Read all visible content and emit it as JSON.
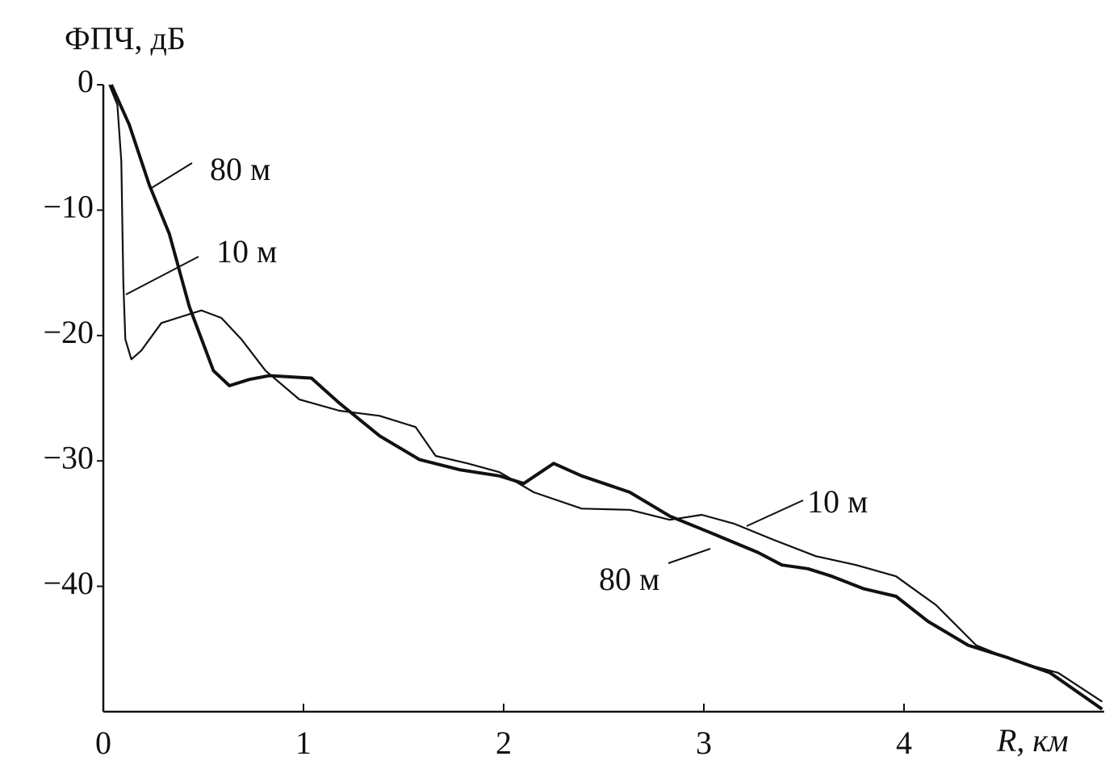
{
  "chart_data": {
    "type": "line",
    "y_label": "ФПЧ, дБ",
    "x_label": "R, км",
    "xlim": [
      0,
      5
    ],
    "xticks": [
      0,
      1,
      2,
      3,
      4
    ],
    "ylim": [
      -50,
      0
    ],
    "yticks": [
      0,
      {
        "value": -10,
        "label": "−10"
      },
      {
        "value": -20,
        "label": "−20"
      },
      {
        "value": -30,
        "label": "−30"
      },
      {
        "value": -40,
        "label": "−40"
      }
    ],
    "series": [
      {
        "name": "80 м",
        "color": "#111111",
        "x": [
          0.04,
          0.13,
          0.23,
          0.33,
          0.43,
          0.55,
          0.63,
          0.73,
          0.83,
          1.04,
          1.18,
          1.38,
          1.58,
          1.78,
          1.98,
          2.1,
          2.25,
          2.39,
          2.63,
          2.83,
          3.03,
          3.27,
          3.39,
          3.52,
          3.64,
          3.8,
          3.96,
          4.12,
          4.32,
          4.52,
          4.73,
          4.99
        ],
        "values": [
          0,
          -3.2,
          -8.0,
          -11.9,
          -17.7,
          -22.8,
          -24.0,
          -23.5,
          -23.2,
          -23.4,
          -25.4,
          -28.0,
          -29.9,
          -30.7,
          -31.2,
          -31.8,
          -30.2,
          -31.2,
          -32.5,
          -34.4,
          -35.7,
          -37.3,
          -38.3,
          -38.6,
          -39.2,
          -40.2,
          -40.8,
          -42.8,
          -44.7,
          -45.7,
          -46.9,
          -49.8
        ]
      },
      {
        "name": "10 м",
        "color": "#111111",
        "x": [
          0.03,
          0.07,
          0.09,
          0.1,
          0.11,
          0.14,
          0.19,
          0.29,
          0.37,
          0.49,
          0.59,
          0.69,
          0.81,
          0.98,
          1.18,
          1.38,
          1.56,
          1.66,
          1.82,
          1.98,
          2.15,
          2.39,
          2.63,
          2.83,
          2.99,
          3.15,
          3.35,
          3.56,
          3.76,
          3.96,
          4.16,
          4.36,
          4.56,
          4.77,
          4.99
        ],
        "values": [
          0,
          -1.6,
          -6.1,
          -15.8,
          -20.3,
          -21.9,
          -21.2,
          -19.0,
          -18.6,
          -18.0,
          -18.6,
          -20.3,
          -22.8,
          -25.1,
          -26.0,
          -26.4,
          -27.3,
          -29.6,
          -30.2,
          -30.9,
          -32.5,
          -33.8,
          -33.9,
          -34.7,
          -34.3,
          -35.0,
          -36.3,
          -37.6,
          -38.3,
          -39.2,
          -41.5,
          -44.7,
          -46.0,
          -46.9,
          -49.2
        ]
      }
    ]
  }
}
